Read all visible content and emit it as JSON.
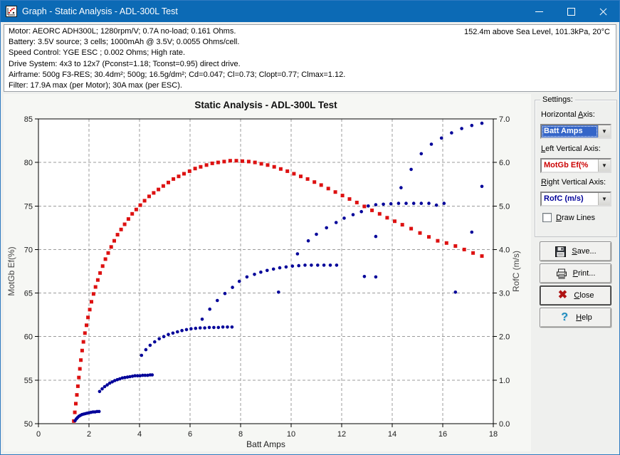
{
  "window": {
    "title": "Graph - Static Analysis - ADL-300L Test"
  },
  "header": {
    "lines": {
      "motor": "Motor: AEORC ADH300L; 1280rpm/V; 0.7A no-load; 0.161 Ohms.",
      "battery": "Battery: 3.5V source; 3 cells; 1000mAh @ 3.5V; 0.0055 Ohms/cell.",
      "speed_control": "Speed Control: YGE ESC ; 0.002 Ohms; High rate.",
      "drive_system": "Drive System: 4x3 to 12x7 (Pconst=1.18; Tconst=0.95) direct drive.",
      "airframe": "Airframe: 500g F3-RES; 30.4dm²; 500g; 16.5g/dm²; Cd=0.047; Cl=0.73; Clopt=0.77; Clmax=1.12.",
      "filter": "Filter: 17.9A max (per Motor); 30A max (per ESC)."
    },
    "conditions": "152.4m above Sea Level, 101.3kPa, 20°C"
  },
  "settings": {
    "group_label": "Settings:",
    "dropdown_arrow": "▼",
    "horizontal_axis": {
      "label_pre": "Horizontal ",
      "label_key": "A",
      "label_rest": "xis:",
      "value": "Batt Amps",
      "value_color": "#ffffff",
      "value_bg": "#3465c8"
    },
    "left_vertical_axis": {
      "label_pre": "",
      "label_key": "L",
      "label_rest": "eft Vertical Axis:",
      "value": "MotGb Ef(%",
      "value_color": "#cc0000"
    },
    "right_vertical_axis": {
      "label_pre": "",
      "label_key": "R",
      "label_rest": "ight Vertical Axis:",
      "value": "RofC (m/s)",
      "value_color": "#000099"
    },
    "draw_lines": {
      "label_key": "D",
      "label_rest": "raw Lines",
      "checked": false
    }
  },
  "buttons": {
    "save": {
      "key": "S",
      "rest": "ave..."
    },
    "print": {
      "key": "P",
      "rest": "rint..."
    },
    "close": {
      "key": "C",
      "rest": "lose",
      "icon_glyph": "✖"
    },
    "help": {
      "key": "H",
      "rest": "elp",
      "icon_glyph": "?"
    }
  },
  "chart_data": {
    "type": "scatter",
    "title": "Static Analysis - ADL-300L Test",
    "xlabel": "Batt Amps",
    "xlim": [
      0,
      18
    ],
    "x_ticks": [
      0,
      2,
      4,
      6,
      8,
      10,
      12,
      14,
      16,
      18
    ],
    "grid": "dashed",
    "legend": "none",
    "left_axis": {
      "label": "MotGb Ef(%)",
      "lim": [
        50,
        85
      ],
      "ticks": [
        50,
        55,
        60,
        65,
        70,
        75,
        80,
        85
      ],
      "color": "#cc0000"
    },
    "right_axis": {
      "label": "RofC (m/s)",
      "lim": [
        0,
        7
      ],
      "ticks": [
        0,
        1,
        2,
        3,
        4,
        5,
        6,
        7
      ],
      "tick_decimals": 1,
      "color": "#000099"
    },
    "series": [
      {
        "name": "MotGb Ef(%)",
        "axis": "left",
        "marker": "square",
        "color": "#dd1111",
        "points": [
          [
            1.4,
            50.3
          ],
          [
            1.44,
            51.3
          ],
          [
            1.48,
            52.3
          ],
          [
            1.52,
            53.3
          ],
          [
            1.56,
            54.3
          ],
          [
            1.6,
            55.3
          ],
          [
            1.64,
            56.3
          ],
          [
            1.68,
            57.3
          ],
          [
            1.73,
            58.4
          ],
          [
            1.78,
            59.4
          ],
          [
            1.84,
            60.4
          ],
          [
            1.9,
            61.3
          ],
          [
            1.96,
            62.2
          ],
          [
            2.03,
            63.1
          ],
          [
            2.1,
            64.0
          ],
          [
            2.18,
            64.9
          ],
          [
            2.26,
            65.7
          ],
          [
            2.35,
            66.5
          ],
          [
            2.44,
            67.3
          ],
          [
            2.54,
            68.1
          ],
          [
            2.65,
            68.9
          ],
          [
            2.76,
            69.6
          ],
          [
            2.88,
            70.3
          ],
          [
            3.0,
            71.0
          ],
          [
            3.13,
            71.7
          ],
          [
            3.27,
            72.3
          ],
          [
            3.41,
            72.9
          ],
          [
            3.56,
            73.5
          ],
          [
            3.71,
            74.1
          ],
          [
            3.87,
            74.6
          ],
          [
            4.03,
            75.1
          ],
          [
            4.2,
            75.6
          ],
          [
            4.38,
            76.1
          ],
          [
            4.56,
            76.5
          ],
          [
            4.75,
            76.9
          ],
          [
            4.94,
            77.3
          ],
          [
            5.14,
            77.7
          ],
          [
            5.34,
            78.1
          ],
          [
            5.55,
            78.4
          ],
          [
            5.76,
            78.7
          ],
          [
            5.98,
            79.0
          ],
          [
            6.2,
            79.3
          ],
          [
            6.42,
            79.5
          ],
          [
            6.65,
            79.7
          ],
          [
            6.88,
            79.9
          ],
          [
            7.11,
            80.0
          ],
          [
            7.35,
            80.1
          ],
          [
            7.59,
            80.2
          ],
          [
            7.83,
            80.2
          ],
          [
            8.07,
            80.15
          ],
          [
            8.32,
            80.1
          ],
          [
            8.57,
            80.0
          ],
          [
            8.82,
            79.85
          ],
          [
            9.07,
            79.7
          ],
          [
            9.33,
            79.5
          ],
          [
            9.59,
            79.25
          ],
          [
            9.85,
            79.0
          ],
          [
            10.11,
            78.7
          ],
          [
            10.38,
            78.4
          ],
          [
            10.65,
            78.1
          ],
          [
            10.92,
            77.75
          ],
          [
            11.19,
            77.4
          ],
          [
            11.47,
            77.0
          ],
          [
            11.75,
            76.6
          ],
          [
            12.03,
            76.2
          ],
          [
            12.31,
            75.8
          ],
          [
            12.6,
            75.4
          ],
          [
            12.9,
            74.95
          ],
          [
            13.2,
            74.5
          ],
          [
            13.5,
            74.1
          ],
          [
            13.8,
            73.65
          ],
          [
            14.1,
            73.25
          ],
          [
            14.4,
            72.85
          ],
          [
            14.75,
            72.4
          ],
          [
            15.1,
            71.9
          ],
          [
            15.45,
            71.45
          ],
          [
            15.8,
            71.0
          ],
          [
            16.15,
            70.75
          ],
          [
            16.5,
            70.4
          ],
          [
            16.85,
            70.0
          ],
          [
            17.2,
            69.6
          ],
          [
            17.55,
            69.25
          ]
        ]
      },
      {
        "name": "RofC (m/s)",
        "axis": "right",
        "marker": "dot",
        "color": "#000099",
        "points": [
          [
            1.45,
            0.07
          ],
          [
            1.5,
            0.11
          ],
          [
            1.55,
            0.14
          ],
          [
            1.6,
            0.17
          ],
          [
            1.66,
            0.19
          ],
          [
            1.72,
            0.21
          ],
          [
            1.79,
            0.22
          ],
          [
            1.86,
            0.23
          ],
          [
            1.93,
            0.24
          ],
          [
            2.0,
            0.25
          ],
          [
            2.08,
            0.26
          ],
          [
            2.16,
            0.27
          ],
          [
            2.24,
            0.27
          ],
          [
            2.32,
            0.28
          ],
          [
            2.4,
            0.28
          ],
          [
            2.42,
            0.74
          ],
          [
            2.52,
            0.8
          ],
          [
            2.62,
            0.85
          ],
          [
            2.72,
            0.89
          ],
          [
            2.82,
            0.93
          ],
          [
            2.92,
            0.96
          ],
          [
            3.02,
            0.99
          ],
          [
            3.12,
            1.01
          ],
          [
            3.22,
            1.03
          ],
          [
            3.32,
            1.05
          ],
          [
            3.42,
            1.06
          ],
          [
            3.52,
            1.07
          ],
          [
            3.62,
            1.08
          ],
          [
            3.72,
            1.09
          ],
          [
            3.82,
            1.1
          ],
          [
            3.92,
            1.1
          ],
          [
            4.02,
            1.1
          ],
          [
            4.12,
            1.11
          ],
          [
            4.22,
            1.11
          ],
          [
            4.32,
            1.11
          ],
          [
            4.42,
            1.12
          ],
          [
            4.5,
            1.12
          ],
          [
            4.08,
            1.57
          ],
          [
            4.25,
            1.7
          ],
          [
            4.42,
            1.8
          ],
          [
            4.6,
            1.88
          ],
          [
            4.78,
            1.95
          ],
          [
            4.96,
            2.0
          ],
          [
            5.14,
            2.05
          ],
          [
            5.32,
            2.08
          ],
          [
            5.5,
            2.11
          ],
          [
            5.68,
            2.14
          ],
          [
            5.86,
            2.16
          ],
          [
            6.04,
            2.18
          ],
          [
            6.22,
            2.19
          ],
          [
            6.4,
            2.2
          ],
          [
            6.58,
            2.2
          ],
          [
            6.76,
            2.21
          ],
          [
            6.94,
            2.21
          ],
          [
            7.12,
            2.21
          ],
          [
            7.3,
            2.22
          ],
          [
            7.48,
            2.22
          ],
          [
            7.66,
            2.22
          ],
          [
            6.48,
            2.4
          ],
          [
            6.78,
            2.63
          ],
          [
            7.08,
            2.83
          ],
          [
            7.38,
            2.99
          ],
          [
            7.68,
            3.13
          ],
          [
            7.95,
            3.27
          ],
          [
            8.25,
            3.37
          ],
          [
            8.55,
            3.43
          ],
          [
            8.8,
            3.48
          ],
          [
            9.05,
            3.52
          ],
          [
            9.3,
            3.55
          ],
          [
            9.55,
            3.58
          ],
          [
            9.8,
            3.6
          ],
          [
            10.05,
            3.62
          ],
          [
            10.3,
            3.63
          ],
          [
            10.55,
            3.64
          ],
          [
            10.8,
            3.64
          ],
          [
            11.05,
            3.64
          ],
          [
            11.3,
            3.64
          ],
          [
            11.55,
            3.64
          ],
          [
            11.8,
            3.64
          ],
          [
            9.5,
            3.02
          ],
          [
            10.25,
            3.9
          ],
          [
            10.68,
            4.2
          ],
          [
            11.0,
            4.35
          ],
          [
            11.4,
            4.5
          ],
          [
            11.78,
            4.62
          ],
          [
            12.1,
            4.72
          ],
          [
            12.45,
            4.8
          ],
          [
            12.78,
            4.87
          ],
          [
            13.05,
            5.0
          ],
          [
            13.35,
            5.03
          ],
          [
            13.65,
            5.04
          ],
          [
            13.95,
            5.05
          ],
          [
            14.25,
            5.06
          ],
          [
            14.55,
            5.06
          ],
          [
            14.85,
            5.06
          ],
          [
            15.15,
            5.06
          ],
          [
            15.45,
            5.06
          ],
          [
            15.75,
            5.02
          ],
          [
            16.05,
            5.06
          ],
          [
            12.9,
            3.38
          ],
          [
            13.35,
            3.37
          ],
          [
            13.35,
            4.3
          ],
          [
            14.35,
            5.42
          ],
          [
            14.75,
            5.84
          ],
          [
            15.15,
            6.2
          ],
          [
            15.55,
            6.42
          ],
          [
            15.95,
            6.56
          ],
          [
            16.35,
            6.68
          ],
          [
            16.75,
            6.78
          ],
          [
            17.15,
            6.85
          ],
          [
            17.55,
            6.9
          ],
          [
            16.5,
            3.02
          ],
          [
            17.15,
            4.4
          ],
          [
            17.55,
            5.45
          ]
        ]
      }
    ]
  }
}
